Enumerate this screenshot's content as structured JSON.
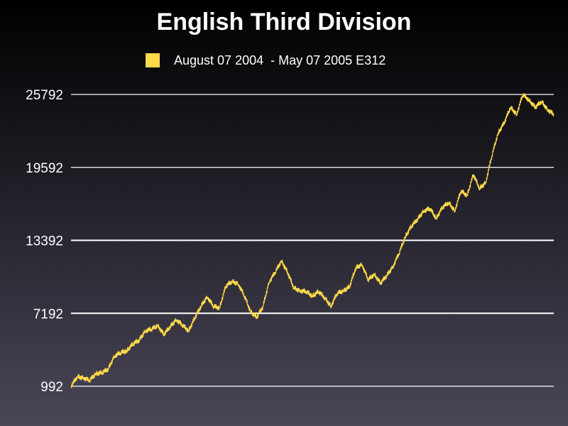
{
  "colors": {
    "series": "#ffd94a",
    "grid": "#ffffff",
    "text": "#ffffff",
    "bg_top": "#000000",
    "bg_bottom": "#4a4658"
  },
  "chart_data": {
    "type": "line",
    "title": "English Third Division",
    "legend_position": "top",
    "grid": true,
    "series": [
      {
        "name": "August 07 2004  - May 07 2005 E312",
        "x_range": [
          "2004-08-07",
          "2005-05-07"
        ],
        "y": [
          992,
          1800,
          1700,
          1500,
          2050,
          2150,
          2450,
          3550,
          3850,
          4000,
          4600,
          4900,
          5700,
          5850,
          6150,
          5400,
          6050,
          6650,
          6200,
          5700,
          6800,
          7800,
          8600,
          7800,
          7650,
          9500,
          9900,
          9700,
          8700,
          7350,
          6850,
          7750,
          9850,
          10700,
          11650,
          10650,
          9350,
          9100,
          9050,
          8650,
          9050,
          8500,
          7800,
          8900,
          9100,
          9450,
          11050,
          11350,
          10050,
          10500,
          9750,
          10400,
          11150,
          12300,
          13700,
          14600,
          15200,
          15900,
          16100,
          15250,
          16200,
          16600,
          15900,
          17600,
          17200,
          19000,
          17800,
          18300,
          20600,
          22500,
          23400,
          24700,
          24100,
          25800,
          25300,
          24700,
          25200,
          24500,
          24100
        ]
      }
    ],
    "y_ticks": [
      992,
      7192,
      13392,
      19592,
      25792
    ],
    "ylim": [
      992,
      25792
    ]
  }
}
